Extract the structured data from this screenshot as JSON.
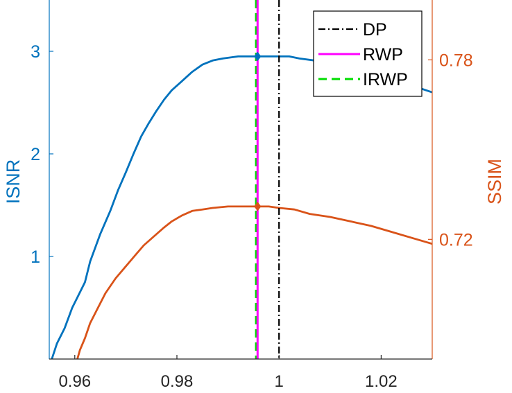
{
  "chart_data": {
    "type": "line",
    "title": "",
    "xlabel": "",
    "ylabel_left": "ISNR",
    "ylabel_right": "SSIM",
    "xlim": [
      0.955,
      1.03
    ],
    "ylim_left": [
      0.0,
      3.5
    ],
    "ylim_right": [
      0.68,
      0.8
    ],
    "x_ticks": [
      0.96,
      0.98,
      1.0,
      1.02
    ],
    "x_tick_labels": [
      "0.96",
      "0.98",
      "1",
      "1.02"
    ],
    "y_left_ticks": [
      1,
      2,
      3
    ],
    "y_left_tick_labels": [
      "1",
      "2",
      "3"
    ],
    "y_right_ticks": [
      0.72,
      0.78
    ],
    "y_right_tick_labels": [
      "0.72",
      "0.78"
    ],
    "grid": false,
    "legend_position": "top-right",
    "colors": {
      "isnr": "#0072BD",
      "ssim": "#D95319",
      "dp": "#000000",
      "rwp": "#FF00FF",
      "irwp": "#00DD00"
    },
    "series": [
      {
        "axis": "left",
        "x": [
          0.9555,
          0.9565,
          0.958,
          0.9595,
          0.961,
          0.962,
          0.963,
          0.965,
          0.967,
          0.9685,
          0.97,
          0.9715,
          0.973,
          0.9745,
          0.976,
          0.9775,
          0.979,
          0.981,
          0.983,
          0.985,
          0.987,
          0.989,
          0.992,
          0.9958,
          0.998,
          1.0,
          1.002,
          1.004,
          1.007,
          1.01,
          1.013,
          1.016,
          1.02,
          1.024,
          1.027,
          1.03
        ],
        "values": [
          0.0,
          0.15,
          0.3,
          0.5,
          0.65,
          0.75,
          0.95,
          1.22,
          1.45,
          1.65,
          1.82,
          2.0,
          2.17,
          2.3,
          2.42,
          2.53,
          2.62,
          2.71,
          2.8,
          2.87,
          2.91,
          2.93,
          2.95,
          2.95,
          2.95,
          2.95,
          2.95,
          2.93,
          2.91,
          2.88,
          2.85,
          2.82,
          2.76,
          2.7,
          2.65,
          2.6
        ]
      },
      {
        "axis": "right",
        "x": [
          0.9605,
          0.961,
          0.962,
          0.963,
          0.9645,
          0.966,
          0.968,
          0.97,
          0.972,
          0.9735,
          0.9755,
          0.9775,
          0.979,
          0.981,
          0.983,
          0.985,
          0.987,
          0.99,
          0.993,
          0.9958,
          0.998,
          1.0,
          1.003,
          1.006,
          1.01,
          1.014,
          1.018,
          1.022,
          1.026,
          1.03
        ],
        "values": [
          0.68,
          0.683,
          0.687,
          0.692,
          0.697,
          0.702,
          0.707,
          0.711,
          0.715,
          0.718,
          0.721,
          0.724,
          0.726,
          0.728,
          0.7295,
          0.73,
          0.7305,
          0.731,
          0.731,
          0.731,
          0.731,
          0.7305,
          0.73,
          0.7285,
          0.7275,
          0.726,
          0.7245,
          0.7225,
          0.7205,
          0.7185
        ]
      }
    ],
    "markers": [
      {
        "x": 0.9958,
        "axis": "left",
        "value": 2.95
      },
      {
        "x": 0.9958,
        "axis": "right",
        "value": 0.731
      }
    ],
    "vlines": [
      {
        "name": "DP",
        "x": 1.0,
        "style": "dashdot"
      },
      {
        "name": "RWP",
        "x": 0.9958,
        "style": "solid"
      },
      {
        "name": "IRWP",
        "x": 0.9955,
        "style": "dashed"
      }
    ]
  }
}
